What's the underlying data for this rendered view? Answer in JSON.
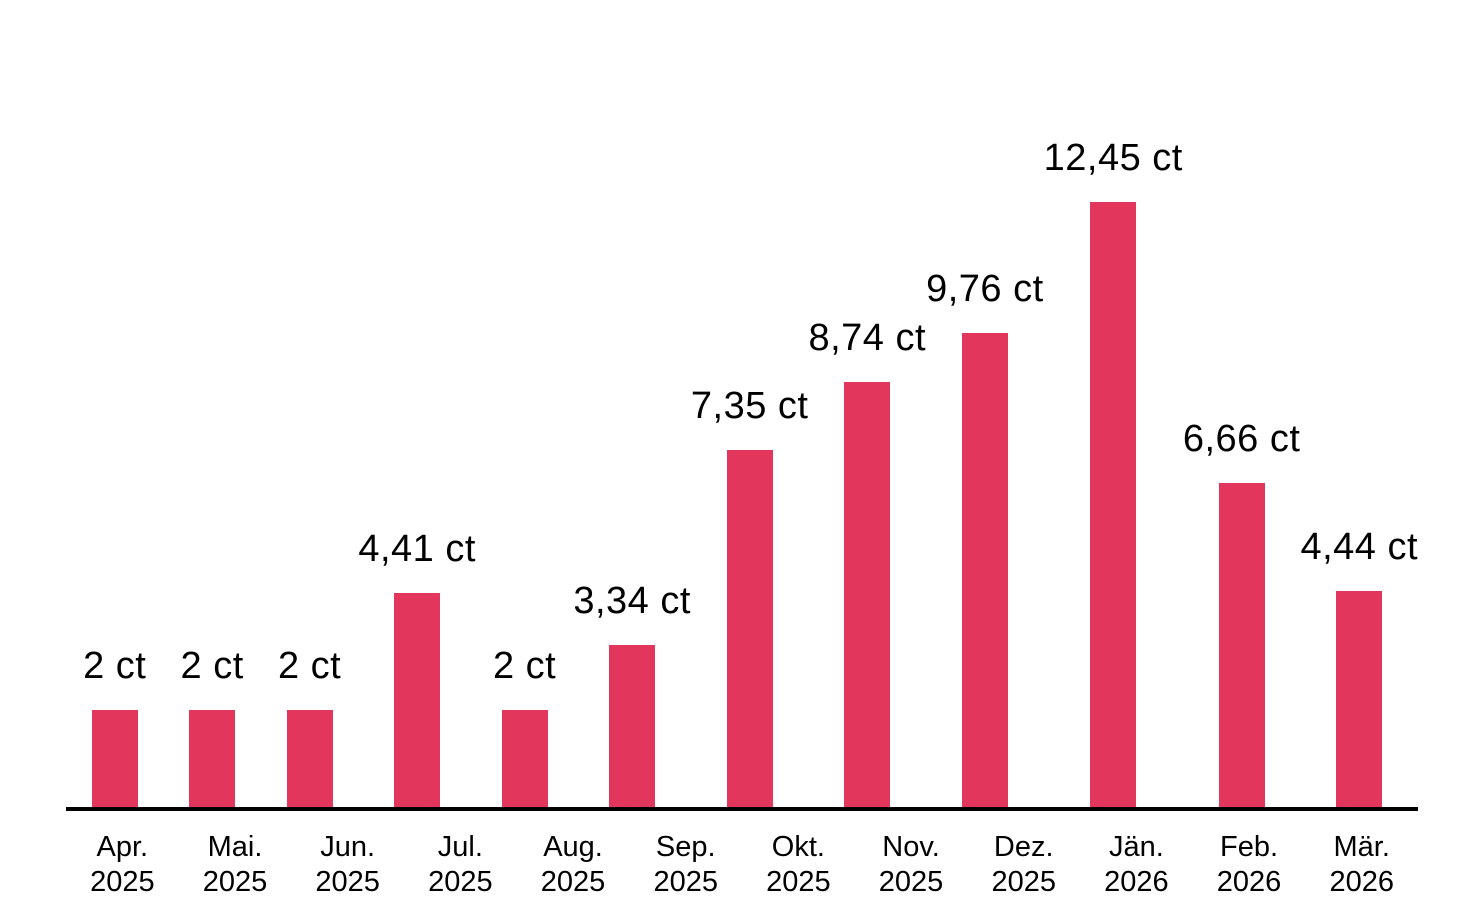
{
  "chart_data": {
    "type": "bar",
    "title": "",
    "unit": "ct",
    "decimal_separator": ",",
    "categories": [
      {
        "month": "Apr.",
        "year": "2025"
      },
      {
        "month": "Mai.",
        "year": "2025"
      },
      {
        "month": "Jun.",
        "year": "2025"
      },
      {
        "month": "Jul.",
        "year": "2025"
      },
      {
        "month": "Aug.",
        "year": "2025"
      },
      {
        "month": "Sep.",
        "year": "2025"
      },
      {
        "month": "Okt.",
        "year": "2025"
      },
      {
        "month": "Nov.",
        "year": "2025"
      },
      {
        "month": "Dez.",
        "year": "2025"
      },
      {
        "month": "Jän.",
        "year": "2026"
      },
      {
        "month": "Feb.",
        "year": "2026"
      },
      {
        "month": "Mär.",
        "year": "2026"
      }
    ],
    "values": [
      2,
      2,
      2,
      4.41,
      2,
      3.34,
      7.35,
      8.74,
      9.76,
      12.45,
      6.66,
      4.44
    ],
    "value_labels": [
      "2 ct",
      "2 ct",
      "2 ct",
      "4,41 ct",
      "2 ct",
      "3,34 ct",
      "7,35 ct",
      "8,74 ct",
      "9,76 ct",
      "12,45 ct",
      "6,66 ct",
      "4,44 ct"
    ],
    "ylim": [
      0,
      12.45
    ],
    "bar_color": "#e3365c",
    "axis_color": "#000000",
    "text_color": "#000000",
    "grid": false,
    "legend": false,
    "layout_hint": "value labels above bars, x-axis labels in two lines below baseline, no y-axis"
  }
}
